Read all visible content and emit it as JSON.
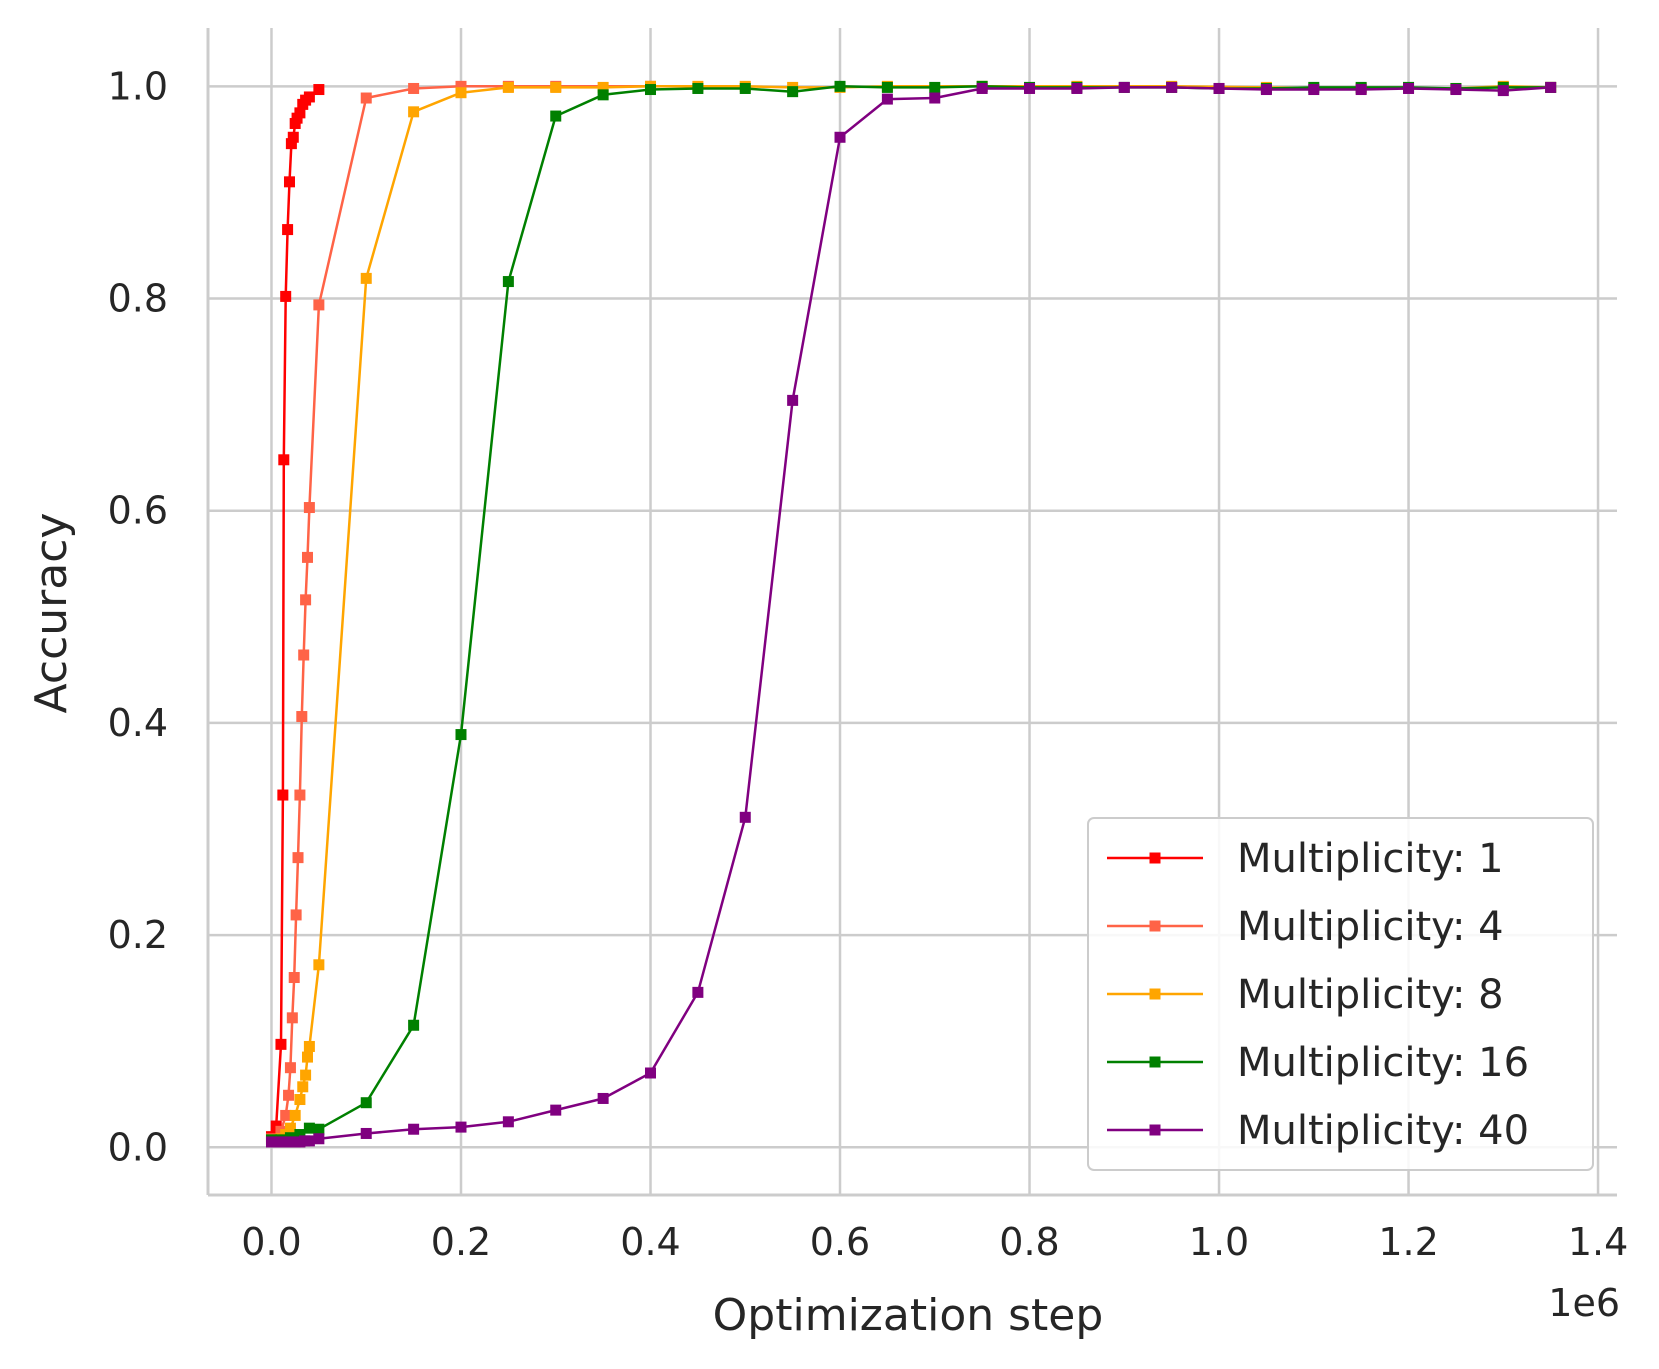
{
  "chart_data": {
    "type": "line",
    "xlabel": "Optimization step",
    "ylabel": "Accuracy",
    "x_offset_text": "1e6",
    "xlim": [
      -0.067,
      1.42
    ],
    "ylim": [
      -0.045,
      1.055
    ],
    "xticks": [
      0.0,
      0.2,
      0.4,
      0.6,
      0.8,
      1.0,
      1.2,
      1.4
    ],
    "xtick_labels": [
      "0.0",
      "0.2",
      "0.4",
      "0.6",
      "0.8",
      "1.0",
      "1.2",
      "1.4"
    ],
    "yticks": [
      0.0,
      0.2,
      0.4,
      0.6,
      0.8,
      1.0
    ],
    "ytick_labels": [
      "0.0",
      "0.2",
      "0.4",
      "0.6",
      "0.8",
      "1.0"
    ],
    "grid": true,
    "legend_position": "lower-right",
    "marker": "square",
    "series": [
      {
        "name": "Multiplicity: 1",
        "color": "#ff0000",
        "points": [
          [
            0.0,
            0.01
          ],
          [
            0.005,
            0.02
          ],
          [
            0.01,
            0.097
          ],
          [
            0.012,
            0.332
          ],
          [
            0.013,
            0.648
          ],
          [
            0.015,
            0.802
          ],
          [
            0.017,
            0.865
          ],
          [
            0.019,
            0.91
          ],
          [
            0.021,
            0.946
          ],
          [
            0.023,
            0.952
          ],
          [
            0.025,
            0.965
          ],
          [
            0.027,
            0.97
          ],
          [
            0.03,
            0.975
          ],
          [
            0.033,
            0.983
          ],
          [
            0.036,
            0.987
          ],
          [
            0.04,
            0.99
          ],
          [
            0.05,
            0.997
          ]
        ]
      },
      {
        "name": "Multiplicity: 4",
        "color": "#ff6347",
        "points": [
          [
            0.0,
            0.008
          ],
          [
            0.01,
            0.015
          ],
          [
            0.015,
            0.03
          ],
          [
            0.018,
            0.049
          ],
          [
            0.02,
            0.075
          ],
          [
            0.022,
            0.122
          ],
          [
            0.024,
            0.16
          ],
          [
            0.026,
            0.219
          ],
          [
            0.028,
            0.273
          ],
          [
            0.03,
            0.332
          ],
          [
            0.032,
            0.406
          ],
          [
            0.034,
            0.464
          ],
          [
            0.036,
            0.516
          ],
          [
            0.038,
            0.556
          ],
          [
            0.04,
            0.603
          ],
          [
            0.05,
            0.794
          ],
          [
            0.1,
            0.989
          ],
          [
            0.15,
            0.998
          ],
          [
            0.2,
            1.0
          ],
          [
            0.25,
            1.0
          ],
          [
            0.3,
            1.0
          ],
          [
            0.4,
            1.0
          ]
        ]
      },
      {
        "name": "Multiplicity: 8",
        "color": "#ffa500",
        "points": [
          [
            0.0,
            0.007
          ],
          [
            0.01,
            0.008
          ],
          [
            0.015,
            0.012
          ],
          [
            0.02,
            0.018
          ],
          [
            0.025,
            0.03
          ],
          [
            0.03,
            0.045
          ],
          [
            0.033,
            0.057
          ],
          [
            0.036,
            0.068
          ],
          [
            0.038,
            0.085
          ],
          [
            0.04,
            0.095
          ],
          [
            0.05,
            0.172
          ],
          [
            0.1,
            0.819
          ],
          [
            0.15,
            0.976
          ],
          [
            0.2,
            0.994
          ],
          [
            0.25,
            0.999
          ],
          [
            0.3,
            0.999
          ],
          [
            0.35,
            0.999
          ],
          [
            0.4,
            1.0
          ],
          [
            0.45,
            1.0
          ],
          [
            0.5,
            1.0
          ],
          [
            0.55,
            0.999
          ],
          [
            0.6,
            0.999
          ],
          [
            0.65,
            1.0
          ],
          [
            0.75,
            1.0
          ],
          [
            0.85,
            1.0
          ],
          [
            0.95,
            1.0
          ],
          [
            1.05,
            0.999
          ],
          [
            1.15,
            0.998
          ],
          [
            1.25,
            0.998
          ],
          [
            1.3,
            1.0
          ],
          [
            1.35,
            0.999
          ]
        ]
      },
      {
        "name": "Multiplicity: 16",
        "color": "#008000",
        "points": [
          [
            0.0,
            0.007
          ],
          [
            0.01,
            0.007
          ],
          [
            0.02,
            0.009
          ],
          [
            0.03,
            0.012
          ],
          [
            0.04,
            0.018
          ],
          [
            0.05,
            0.017
          ],
          [
            0.1,
            0.042
          ],
          [
            0.15,
            0.115
          ],
          [
            0.2,
            0.389
          ],
          [
            0.25,
            0.816
          ],
          [
            0.3,
            0.972
          ],
          [
            0.35,
            0.992
          ],
          [
            0.4,
            0.997
          ],
          [
            0.45,
            0.998
          ],
          [
            0.5,
            0.998
          ],
          [
            0.55,
            0.995
          ],
          [
            0.6,
            1.0
          ],
          [
            0.65,
            0.999
          ],
          [
            0.7,
            0.999
          ],
          [
            0.75,
            1.0
          ],
          [
            0.8,
            0.999
          ],
          [
            0.85,
            0.999
          ],
          [
            0.9,
            0.999
          ],
          [
            0.95,
            0.999
          ],
          [
            1.0,
            0.998
          ],
          [
            1.05,
            0.998
          ],
          [
            1.1,
            0.999
          ],
          [
            1.15,
            0.999
          ],
          [
            1.2,
            0.999
          ],
          [
            1.25,
            0.998
          ],
          [
            1.3,
            0.999
          ],
          [
            1.35,
            0.999
          ]
        ]
      },
      {
        "name": "Multiplicity: 40",
        "color": "#800080",
        "points": [
          [
            0.0,
            0.005
          ],
          [
            0.005,
            0.005
          ],
          [
            0.01,
            0.005
          ],
          [
            0.015,
            0.005
          ],
          [
            0.02,
            0.005
          ],
          [
            0.025,
            0.005
          ],
          [
            0.03,
            0.005
          ],
          [
            0.035,
            0.006
          ],
          [
            0.04,
            0.006
          ],
          [
            0.05,
            0.008
          ],
          [
            0.1,
            0.013
          ],
          [
            0.15,
            0.017
          ],
          [
            0.2,
            0.019
          ],
          [
            0.25,
            0.024
          ],
          [
            0.3,
            0.035
          ],
          [
            0.35,
            0.046
          ],
          [
            0.4,
            0.07
          ],
          [
            0.45,
            0.146
          ],
          [
            0.5,
            0.311
          ],
          [
            0.55,
            0.704
          ],
          [
            0.6,
            0.952
          ],
          [
            0.65,
            0.988
          ],
          [
            0.7,
            0.989
          ],
          [
            0.75,
            0.998
          ],
          [
            0.8,
            0.998
          ],
          [
            0.85,
            0.998
          ],
          [
            0.9,
            0.999
          ],
          [
            0.95,
            0.999
          ],
          [
            1.0,
            0.998
          ],
          [
            1.05,
            0.997
          ],
          [
            1.1,
            0.997
          ],
          [
            1.15,
            0.997
          ],
          [
            1.2,
            0.998
          ],
          [
            1.25,
            0.997
          ],
          [
            1.3,
            0.996
          ],
          [
            1.35,
            0.999
          ]
        ]
      }
    ]
  }
}
